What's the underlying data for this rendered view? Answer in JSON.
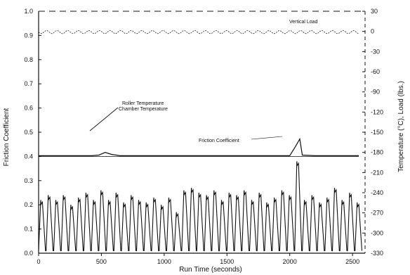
{
  "chart_data": {
    "type": "line",
    "xlabel": "Run Time (seconds)",
    "ylabel_left": "Friction Coefficient",
    "ylabel_right": "Temperature (°C), Load (lbs.)",
    "xlim": [
      0,
      2600
    ],
    "ylim_left": [
      0.0,
      1.0
    ],
    "ylim_right": [
      -330,
      30
    ],
    "x_ticks": [
      0,
      500,
      1000,
      1500,
      2000,
      2500
    ],
    "y_ticks_left": [
      0.0,
      0.1,
      0.2,
      0.3,
      0.4,
      0.5,
      0.6,
      0.7,
      0.8,
      0.9,
      1.0
    ],
    "y_ticks_right": [
      30,
      0,
      -30,
      -60,
      -90,
      -120,
      -150,
      -180,
      -210,
      -240,
      -270,
      -300,
      -330
    ],
    "grid": false,
    "annotations": [
      "Vertical Load",
      "Roller Temperature",
      "Chamber Temperature",
      "Friction Coefficient"
    ],
    "series": [
      {
        "name": "Vertical Load",
        "axis": "right",
        "x": [
          0,
          100,
          200,
          300,
          400,
          500,
          600,
          700,
          800,
          900,
          1000,
          1100,
          1200,
          1300,
          1400,
          1500,
          1600,
          1700,
          1800,
          1900,
          2000,
          2100,
          2200,
          2300,
          2400,
          2500,
          2550
        ],
        "y": [
          -1,
          -1,
          -1,
          -1,
          -1,
          -1,
          -1,
          -1,
          -1,
          -1,
          -1,
          -1,
          -1,
          -1,
          -1,
          -1,
          -1,
          -1,
          -1,
          -1,
          -1,
          -1,
          -1,
          -1,
          -1,
          -1,
          -1
        ]
      },
      {
        "name": "Roller Temperature",
        "axis": "right",
        "x": [
          0,
          300,
          420,
          480,
          530,
          580,
          650,
          700,
          1000,
          1500,
          1800,
          2000,
          2050,
          2080,
          2100,
          2200,
          2550
        ],
        "y": [
          -185,
          -185,
          -185,
          -184,
          -180,
          -183,
          -185,
          -185,
          -185,
          -185,
          -185,
          -185,
          -170,
          -160,
          -184,
          -185,
          -185
        ]
      },
      {
        "name": "Chamber Temperature",
        "axis": "right",
        "x": [
          0,
          500,
          1000,
          1500,
          2000,
          2550
        ],
        "y": [
          -186,
          -186,
          -186,
          -186,
          -186,
          -186
        ]
      },
      {
        "name": "Friction Coefficient",
        "axis": "left",
        "x": [
          0,
          60,
          120,
          180,
          240,
          300,
          360,
          420,
          480,
          540,
          600,
          660,
          720,
          780,
          840,
          900,
          960,
          1020,
          1080,
          1140,
          1200,
          1260,
          1320,
          1380,
          1440,
          1500,
          1560,
          1620,
          1680,
          1740,
          1800,
          1860,
          1920,
          1980,
          2040,
          2100,
          2160,
          2220,
          2280,
          2340,
          2400,
          2460,
          2520
        ],
        "y": [
          0.22,
          0.24,
          0.22,
          0.24,
          0.2,
          0.23,
          0.25,
          0.22,
          0.26,
          0.22,
          0.25,
          0.21,
          0.24,
          0.22,
          0.21,
          0.23,
          0.2,
          0.23,
          0.17,
          0.26,
          0.27,
          0.25,
          0.24,
          0.26,
          0.22,
          0.25,
          0.24,
          0.26,
          0.22,
          0.25,
          0.21,
          0.23,
          0.26,
          0.24,
          0.38,
          0.22,
          0.24,
          0.21,
          0.23,
          0.27,
          0.22,
          0.25,
          0.21
        ]
      }
    ]
  }
}
